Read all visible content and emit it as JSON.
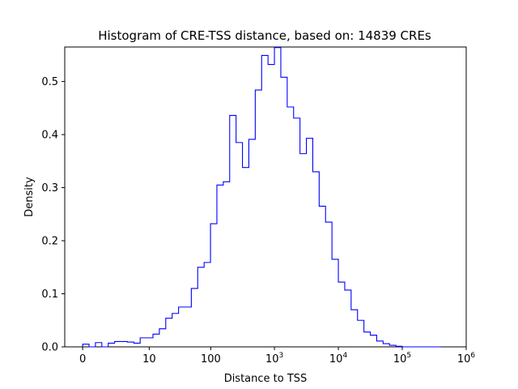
{
  "chart_data": {
    "type": "histogram",
    "title": "Histogram of CRE-TSS distance, based on: 14839 CREs",
    "xlabel": "Distance to TSS",
    "ylabel": "Density",
    "x_scale": "symlog",
    "xlim": [
      0,
      1000000
    ],
    "ylim": [
      0,
      0.565
    ],
    "x_ticks": [
      {
        "value": 0,
        "label": "0"
      },
      {
        "value": 10,
        "label": "10"
      },
      {
        "value": 100,
        "label": "100"
      },
      {
        "value": 1000,
        "label": "10",
        "exp": "3"
      },
      {
        "value": 10000,
        "label": "10",
        "exp": "4"
      },
      {
        "value": 100000,
        "label": "10",
        "exp": "5"
      },
      {
        "value": 1000000,
        "label": "10",
        "exp": "6"
      }
    ],
    "y_ticks": [
      {
        "value": 0.0,
        "label": "0.0"
      },
      {
        "value": 0.1,
        "label": "0.1"
      },
      {
        "value": 0.2,
        "label": "0.2"
      },
      {
        "value": 0.3,
        "label": "0.3"
      },
      {
        "value": 0.4,
        "label": "0.4"
      },
      {
        "value": 0.5,
        "label": "0.5"
      }
    ],
    "series_color": "#0000ff",
    "bin_edges_transformed": [
      0.0,
      0.1,
      0.2,
      0.3,
      0.4,
      0.5,
      0.6,
      0.7,
      0.8,
      0.9,
      1.0,
      1.1,
      1.2,
      1.3,
      1.4,
      1.5,
      1.6,
      1.7,
      1.8,
      1.9,
      2.0,
      2.1,
      2.2,
      2.3,
      2.4,
      2.5,
      2.6,
      2.7,
      2.8,
      2.9,
      3.0,
      3.1,
      3.2,
      3.3,
      3.4,
      3.5,
      3.6,
      3.7,
      3.8,
      3.9,
      4.0,
      4.1,
      4.2,
      4.3,
      4.4,
      4.5,
      4.6,
      4.7,
      4.8,
      4.9,
      5.0,
      5.1,
      5.2,
      5.3,
      5.4,
      5.5,
      5.6
    ],
    "density": [
      0.005,
      0.0,
      0.008,
      0.0,
      0.007,
      0.01,
      0.01,
      0.009,
      0.007,
      0.017,
      0.017,
      0.024,
      0.034,
      0.054,
      0.063,
      0.075,
      0.075,
      0.11,
      0.15,
      0.159,
      0.232,
      0.305,
      0.311,
      0.436,
      0.385,
      0.338,
      0.391,
      0.484,
      0.549,
      0.532,
      0.564,
      0.508,
      0.452,
      0.431,
      0.364,
      0.393,
      0.33,
      0.265,
      0.235,
      0.165,
      0.122,
      0.107,
      0.07,
      0.05,
      0.028,
      0.022,
      0.011,
      0.006,
      0.003,
      0.001,
      0.0,
      0.0,
      0.0,
      0.0,
      0.0,
      0.0
    ]
  }
}
